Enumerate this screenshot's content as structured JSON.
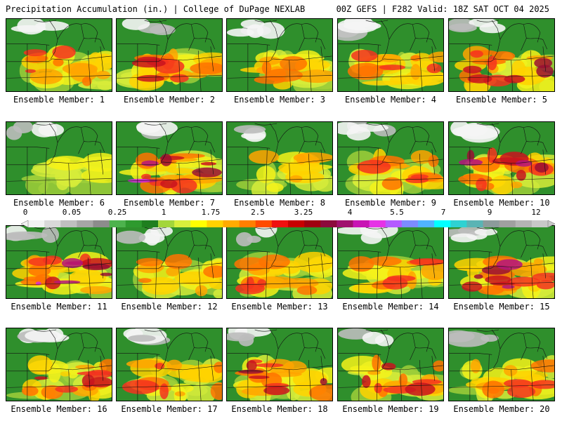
{
  "header": {
    "left_title": "Precipitation Accumulation (in.) | College of DuPage NEXLAB",
    "right_title": "00Z GEFS | F282 Valid: 18Z SAT OCT 04 2025"
  },
  "members": [
    {
      "label": "Ensemble Member: 1",
      "intensity": 0.55
    },
    {
      "label": "Ensemble Member: 2",
      "intensity": 0.7
    },
    {
      "label": "Ensemble Member: 3",
      "intensity": 0.5
    },
    {
      "label": "Ensemble Member: 4",
      "intensity": 0.55
    },
    {
      "label": "Ensemble Member: 5",
      "intensity": 0.75
    },
    {
      "label": "Ensemble Member: 6",
      "intensity": 0.25
    },
    {
      "label": "Ensemble Member: 7",
      "intensity": 0.9
    },
    {
      "label": "Ensemble Member: 8",
      "intensity": 0.45
    },
    {
      "label": "Ensemble Member: 9",
      "intensity": 0.6
    },
    {
      "label": "Ensemble Member: 10",
      "intensity": 0.8
    },
    {
      "label": "Ensemble Member: 11",
      "intensity": 0.95
    },
    {
      "label": "Ensemble Member: 12",
      "intensity": 0.5
    },
    {
      "label": "Ensemble Member: 13",
      "intensity": 0.55
    },
    {
      "label": "Ensemble Member: 14",
      "intensity": 0.6
    },
    {
      "label": "Ensemble Member: 15",
      "intensity": 0.8
    },
    {
      "label": "Ensemble Member: 16",
      "intensity": 0.7
    },
    {
      "label": "Ensemble Member: 17",
      "intensity": 0.55
    },
    {
      "label": "Ensemble Member: 18",
      "intensity": 0.75
    },
    {
      "label": "Ensemble Member: 19",
      "intensity": 0.65
    },
    {
      "label": "Ensemble Member: 20",
      "intensity": 0.6
    }
  ],
  "colorbar": {
    "ticks": [
      "0",
      "0.05",
      "0.25",
      "1",
      "1.75",
      "2.5",
      "3.25",
      "4",
      "5.5",
      "7",
      "9",
      "12"
    ],
    "colors": [
      "#f2f2f2",
      "#d9d9d9",
      "#bfbfbf",
      "#a6a6a6",
      "#8c8c8c",
      "#4db34d",
      "#2e9a2e",
      "#1f7f1f",
      "#a3d63a",
      "#d8ef3c",
      "#ffff00",
      "#ffd200",
      "#ffab00",
      "#ff7f00",
      "#ff4a00",
      "#f01010",
      "#c80000",
      "#a00010",
      "#8c0a3c",
      "#a0106e",
      "#c814b4",
      "#e632e6",
      "#b45aff",
      "#7d8cff",
      "#50b4ff",
      "#00ffff",
      "#2ed2d2",
      "#5ab4b4",
      "#8c9b9b",
      "#a0a0a0",
      "#b4b4b4",
      "#c8c8c8"
    ]
  },
  "field_palette": [
    "#f5f5f5",
    "#bdbdbd",
    "#7fb84a",
    "#2f8f2c",
    "#1e7a1e",
    "#9fcf3a",
    "#d7ec3a",
    "#f4f21a",
    "#ffd200",
    "#ffa500",
    "#ff7300",
    "#f5321e",
    "#c8141e",
    "#9a0f32",
    "#b4147c",
    "#dc2ddc",
    "#a064ff",
    "#32d2ff"
  ]
}
